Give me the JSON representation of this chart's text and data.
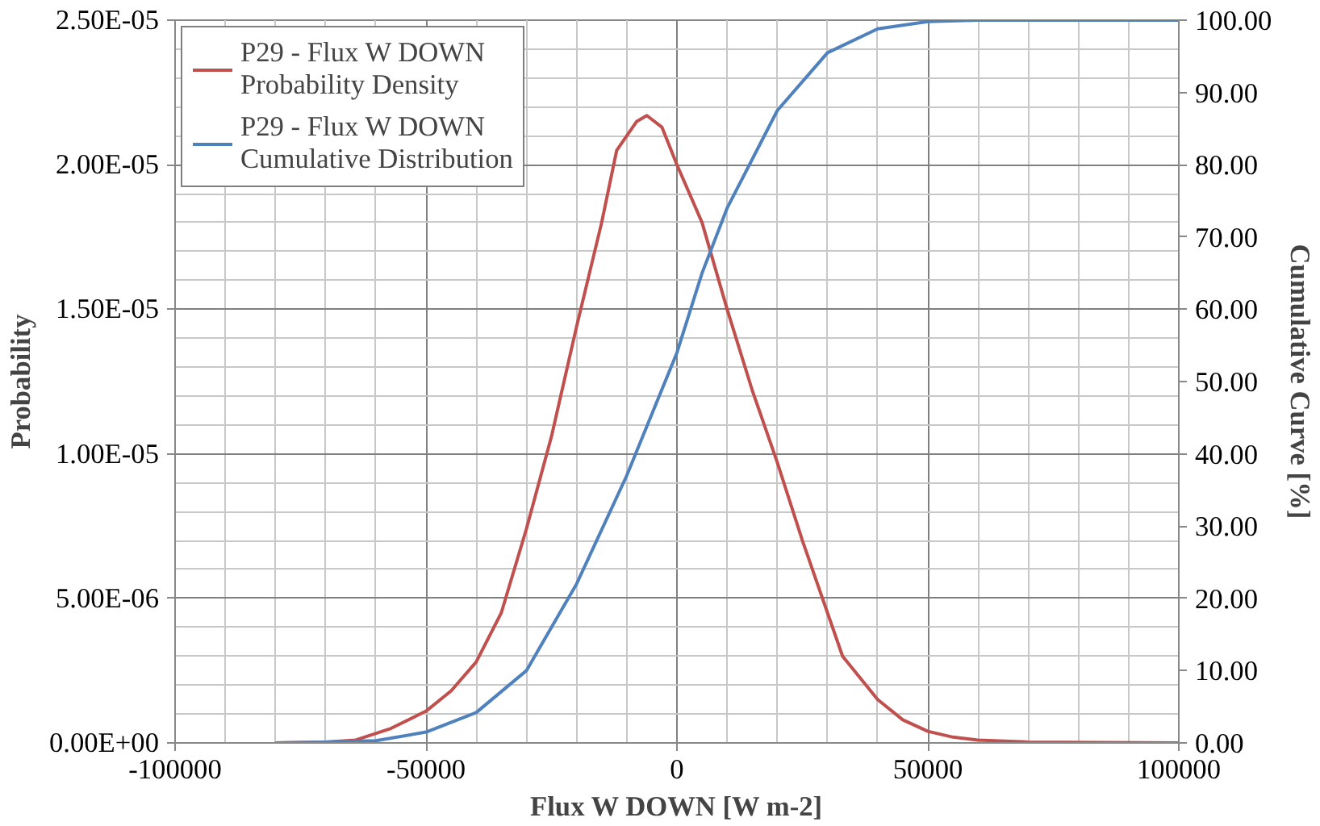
{
  "chart_data": {
    "type": "line",
    "xlabel": "Flux W DOWN [W m-2]",
    "ylabel": "Probability",
    "y2label": "Cumulative Curve [%]",
    "xlim": [
      -100000,
      100000
    ],
    "xticks": [
      -100000,
      -50000,
      0,
      50000,
      100000
    ],
    "ylim": [
      0,
      2.5e-05
    ],
    "yticks": [
      {
        "value": 0,
        "label": "0.00E+00"
      },
      {
        "value": 5e-06,
        "label": "5.00E-06"
      },
      {
        "value": 1e-05,
        "label": "1.00E-05"
      },
      {
        "value": 1.5e-05,
        "label": "1.50E-05"
      },
      {
        "value": 2e-05,
        "label": "2.00E-05"
      },
      {
        "value": 2.5e-05,
        "label": "2.50E-05"
      }
    ],
    "y2lim": [
      0,
      100
    ],
    "y2ticks": [
      {
        "value": 0,
        "label": "0.00"
      },
      {
        "value": 10,
        "label": "10.00"
      },
      {
        "value": 20,
        "label": "20.00"
      },
      {
        "value": 30,
        "label": "30.00"
      },
      {
        "value": 40,
        "label": "40.00"
      },
      {
        "value": 50,
        "label": "50.00"
      },
      {
        "value": 60,
        "label": "60.00"
      },
      {
        "value": 70,
        "label": "70.00"
      },
      {
        "value": 80,
        "label": "80.00"
      },
      {
        "value": 90,
        "label": "90.00"
      },
      {
        "value": 100,
        "label": "100.00"
      }
    ],
    "grid": true,
    "legend": "top left",
    "marker": "none",
    "line_style": "solid",
    "series": [
      {
        "name": "P29 - Flux W DOWN\nProbability Density",
        "color": "#c0504d",
        "x": [
          -80000,
          -70000,
          -64000,
          -57000,
          -50000,
          -45000,
          -40000,
          -35000,
          -30000,
          -25000,
          -20000,
          -15000,
          -12000,
          -8000,
          -6000,
          -3000,
          0,
          5000,
          10000,
          15000,
          20000,
          25000,
          30000,
          33000,
          40000,
          45000,
          50000,
          55000,
          60000,
          70000,
          100000
        ],
        "values": [
          0,
          3e-08,
          1e-07,
          5e-07,
          1.1e-06,
          1.8e-06,
          2.8e-06,
          4.5e-06,
          7.4e-06,
          1.06e-05,
          1.44e-05,
          1.8e-05,
          2.05e-05,
          2.15e-05,
          2.17e-05,
          2.13e-05,
          2e-05,
          1.8e-05,
          1.5e-05,
          1.22e-05,
          9.7e-06,
          7e-06,
          4.5e-06,
          3e-06,
          1.5e-06,
          8e-07,
          4e-07,
          2e-07,
          1e-07,
          3e-08,
          0
        ]
      },
      {
        "name": "P29 - Flux W DOWN\nCumulative Distribution",
        "color": "#4f81bd",
        "axis": "y2",
        "x": [
          -80000,
          -70000,
          -60000,
          -50000,
          -40000,
          -30000,
          -20000,
          -10000,
          0,
          5000,
          10000,
          20000,
          30000,
          40000,
          50000,
          60000,
          100000
        ],
        "values": [
          0,
          0.1,
          0.3,
          1.5,
          4.2,
          10,
          22,
          37,
          54,
          65,
          74,
          87.5,
          95.5,
          98.8,
          99.8,
          100,
          100
        ]
      }
    ]
  }
}
